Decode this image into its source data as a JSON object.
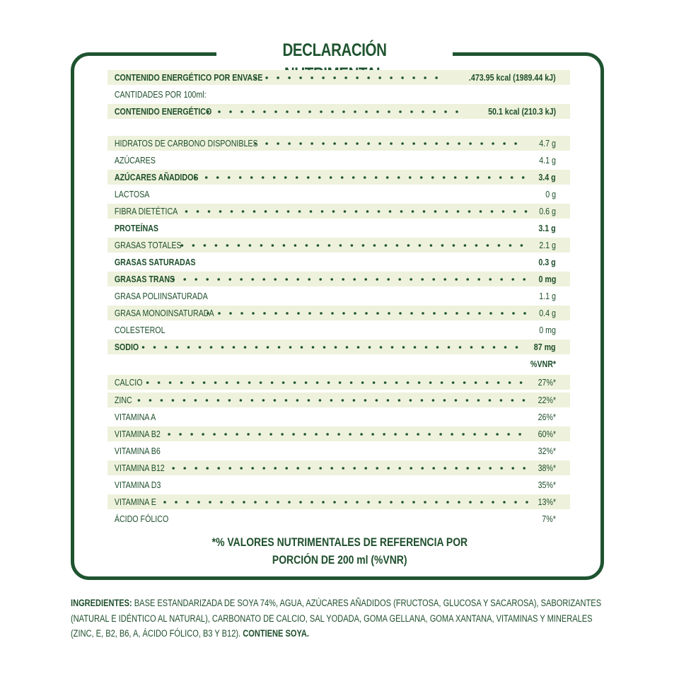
{
  "title": "DECLARACIÓN NUTRIMENTAL",
  "colors": {
    "primary": "#1f5430",
    "band": "#eef2dc",
    "text": "#1f4f2c"
  },
  "rows": [
    {
      "label": "CONTENIDO ENERGÉTICO POR ENVASE",
      "value": ".473.95 kcal (1989.44 kJ)",
      "band": true,
      "bold": true
    },
    {
      "label": "CANTIDADES POR 100ml:",
      "value": "",
      "band": false,
      "bold": false
    },
    {
      "label": "CONTENIDO ENERGÉTICO",
      "value": "50.1 kcal (210.3 kJ)",
      "band": true,
      "bold": true
    },
    {
      "label": "HIDRATOS DE CARBONO DISPONIBLES",
      "value": "4.7 g",
      "band": true,
      "bold": false
    },
    {
      "label": "AZÚCARES",
      "value": "4.1 g",
      "band": false,
      "bold": false
    },
    {
      "label": "AZÚCARES AÑADIDOS",
      "value": "3.4 g",
      "band": true,
      "bold": true
    },
    {
      "label": "LACTOSA",
      "value": "0 g",
      "band": false,
      "bold": false
    },
    {
      "label": "FIBRA DIETÉTICA",
      "value": "0.6 g",
      "band": true,
      "bold": false
    },
    {
      "label": "PROTEÍNAS",
      "value": "3.1 g",
      "band": false,
      "bold": true
    },
    {
      "label": "GRASAS TOTALES",
      "value": "2.1 g",
      "band": true,
      "bold": false
    },
    {
      "label": "GRASAS SATURADAS",
      "value": "0.3 g",
      "band": false,
      "bold": true
    },
    {
      "label": "GRASAS TRANS",
      "value": "0 mg",
      "band": true,
      "bold": true
    },
    {
      "label": "GRASA POLIINSATURADA",
      "value": "1.1 g",
      "band": false,
      "bold": false
    },
    {
      "label": "GRASA MONOINSATURADA",
      "value": "0.4 g",
      "band": true,
      "bold": false
    },
    {
      "label": "COLESTEROL",
      "value": "0 mg",
      "band": false,
      "bold": false
    },
    {
      "label": "SODIO",
      "value": "87 mg",
      "band": true,
      "bold": true
    },
    {
      "label": "",
      "value": "%VNR*",
      "band": false,
      "bold": true
    },
    {
      "label": "CALCIO",
      "value": "27%*",
      "band": true,
      "bold": false
    },
    {
      "label": "ZINC",
      "value": "22%*",
      "band": true,
      "bold": false
    },
    {
      "label": "VITAMINA A",
      "value": "26%*",
      "band": false,
      "bold": false
    },
    {
      "label": "VITAMINA B2",
      "value": "60%*",
      "band": true,
      "bold": false
    },
    {
      "label": "VITAMINA B6",
      "value": "32%*",
      "band": false,
      "bold": false
    },
    {
      "label": "VITAMINA B12",
      "value": "38%*",
      "band": true,
      "bold": false
    },
    {
      "label": "VITAMINA D3",
      "value": "35%*",
      "band": false,
      "bold": false
    },
    {
      "label": "VITAMINA E",
      "value": "13%*",
      "band": true,
      "bold": false
    },
    {
      "label": "ÁCIDO FÓLICO",
      "value": "7%*",
      "band": false,
      "bold": false
    }
  ],
  "footnote": {
    "line1": "*% VALORES NUTRIMENTALES DE REFERENCIA POR",
    "line2": "PORCIÓN DE 200 ml (%VNR)"
  },
  "ingredients": {
    "label": "INGREDIENTES:",
    "text": " BASE ESTANDARIZADA DE SOYA 74%, AGUA, AZÚCARES AÑADIDOS (FRUCTOSA, GLUCOSA Y SACAROSA), SABORIZANTES (NATURAL E IDÉNTICO AL NATURAL), CARBONATO DE CALCIO, SAL YODADA, GOMA GELLANA, GOMA XANTANA, VITAMINAS Y MINERALES (ZINC, E, B2, B6, A, ÁCIDO FÓLICO, B3 Y B12). ",
    "allergen": "CONTIENE SOYA."
  }
}
